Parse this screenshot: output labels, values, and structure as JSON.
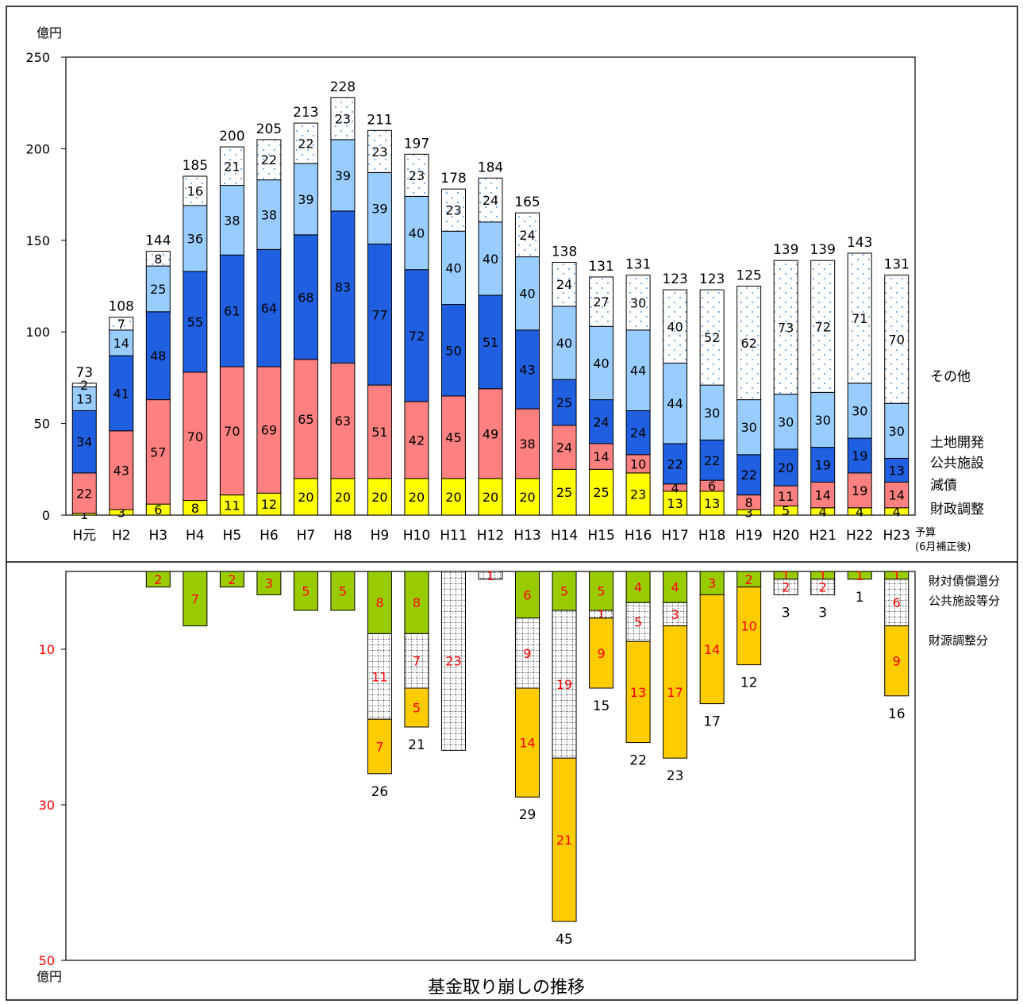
{
  "chart_data": [
    {
      "type": "bar",
      "stacked": true,
      "unit_label": "億円",
      "ylim": [
        0,
        250
      ],
      "yticks": [
        0,
        50,
        100,
        150,
        200,
        250
      ],
      "categories": [
        "H元",
        "H2",
        "H3",
        "H4",
        "H5",
        "H6",
        "H7",
        "H8",
        "H9",
        "H10",
        "H11",
        "H12",
        "H13",
        "H14",
        "H15",
        "H16",
        "H17",
        "H18",
        "H19",
        "H20",
        "H21",
        "H22",
        "H23"
      ],
      "last_category_note": [
        "予算",
        "(6月補正後)"
      ],
      "series": [
        {
          "name": "財政調整",
          "color": "#ffff00",
          "values": [
            1,
            3,
            6,
            8,
            11,
            12,
            20,
            20,
            20,
            20,
            20,
            20,
            20,
            25,
            25,
            23,
            13,
            13,
            3,
            5,
            4,
            4,
            4
          ]
        },
        {
          "name": "減債",
          "color": "#ff8080",
          "values": [
            22,
            43,
            57,
            70,
            70,
            69,
            65,
            63,
            51,
            42,
            45,
            49,
            38,
            24,
            14,
            10,
            4,
            6,
            8,
            11,
            14,
            19,
            14
          ]
        },
        {
          "name": "公共施設",
          "color": "#1f5fe0",
          "values": [
            34,
            41,
            48,
            55,
            61,
            64,
            68,
            83,
            77,
            72,
            50,
            51,
            43,
            25,
            24,
            24,
            22,
            22,
            22,
            20,
            19,
            19,
            13
          ]
        },
        {
          "name": "土地開発",
          "color": "#99ccff",
          "values": [
            13,
            14,
            25,
            36,
            38,
            38,
            39,
            39,
            39,
            40,
            40,
            40,
            40,
            40,
            40,
            44,
            44,
            30,
            30,
            30,
            30,
            30,
            30
          ]
        },
        {
          "name": "その他",
          "color": "#ffffff",
          "values": [
            2,
            7,
            8,
            16,
            21,
            22,
            22,
            23,
            23,
            23,
            23,
            24,
            24,
            24,
            27,
            30,
            40,
            52,
            62,
            73,
            72,
            71,
            70
          ]
        }
      ],
      "totals": [
        73,
        108,
        144,
        185,
        200,
        205,
        213,
        228,
        211,
        197,
        178,
        184,
        165,
        138,
        131,
        131,
        123,
        123,
        125,
        139,
        139,
        143,
        131
      ]
    },
    {
      "type": "bar",
      "stacked": true,
      "inverted": true,
      "unit_label": "億円",
      "ylim": [
        0,
        50
      ],
      "yticks": [
        10,
        30,
        50
      ],
      "categories": [
        "H元",
        "H2",
        "H3",
        "H4",
        "H5",
        "H6",
        "H7",
        "H8",
        "H9",
        "H10",
        "H11",
        "H12",
        "H13",
        "H14",
        "H15",
        "H16",
        "H17",
        "H18",
        "H19",
        "H20",
        "H21",
        "H22",
        "H23"
      ],
      "series": [
        {
          "name": "財対債償還分",
          "color": "#99cc00",
          "values": [
            0,
            0,
            2,
            7,
            2,
            3,
            5,
            5,
            8,
            8,
            0,
            0,
            6,
            5,
            5,
            4,
            4,
            3,
            2,
            1,
            1,
            1,
            1
          ]
        },
        {
          "name": "公共施設等分",
          "color": "#ffffff",
          "values": [
            0,
            0,
            0,
            0,
            0,
            0,
            0,
            0,
            11,
            7,
            23,
            1,
            9,
            19,
            1,
            5,
            3,
            0,
            0,
            2,
            2,
            0,
            6
          ]
        },
        {
          "name": "財源調整分",
          "color": "#ffcc00",
          "values": [
            0,
            0,
            0,
            0,
            0,
            0,
            0,
            0,
            7,
            5,
            0,
            0,
            14,
            21,
            9,
            13,
            17,
            14,
            10,
            0,
            0,
            0,
            9
          ]
        }
      ],
      "totals": [
        "",
        "",
        "",
        "",
        "",
        "",
        "",
        "",
        26,
        21,
        "",
        "",
        29,
        45,
        15,
        22,
        23,
        17,
        12,
        3,
        3,
        1,
        16
      ],
      "title": "基金取り崩しの推移"
    }
  ]
}
